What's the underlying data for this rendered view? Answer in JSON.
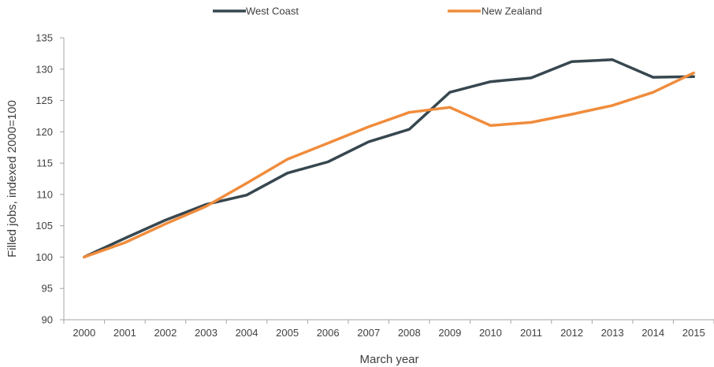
{
  "chart_data": {
    "type": "line",
    "xlabel": "March year",
    "ylabel": "Filled jobs, indexed 2000=100",
    "ylim": [
      90,
      135
    ],
    "yticks": [
      90,
      95,
      100,
      105,
      110,
      115,
      120,
      125,
      130,
      135
    ],
    "categories": [
      "2000",
      "2001",
      "2002",
      "2003",
      "2004",
      "2005",
      "2006",
      "2007",
      "2008",
      "2009",
      "2010",
      "2011",
      "2012",
      "2013",
      "2014",
      "2015"
    ],
    "grid": false,
    "legend_position": "top",
    "series": [
      {
        "name": "West Coast",
        "color": "#37474f",
        "values": [
          100,
          103,
          105.9,
          108.4,
          109.9,
          113.4,
          115.2,
          118.4,
          120.4,
          126.3,
          128.0,
          128.6,
          131.2,
          131.5,
          128.7,
          128.8
        ]
      },
      {
        "name": "New Zealand",
        "color": "#f08c3c",
        "values": [
          100,
          102.3,
          105.3,
          108.1,
          111.8,
          115.6,
          118.2,
          120.8,
          123.1,
          123.9,
          121.0,
          121.5,
          122.8,
          124.2,
          126.3,
          129.4
        ]
      }
    ]
  }
}
